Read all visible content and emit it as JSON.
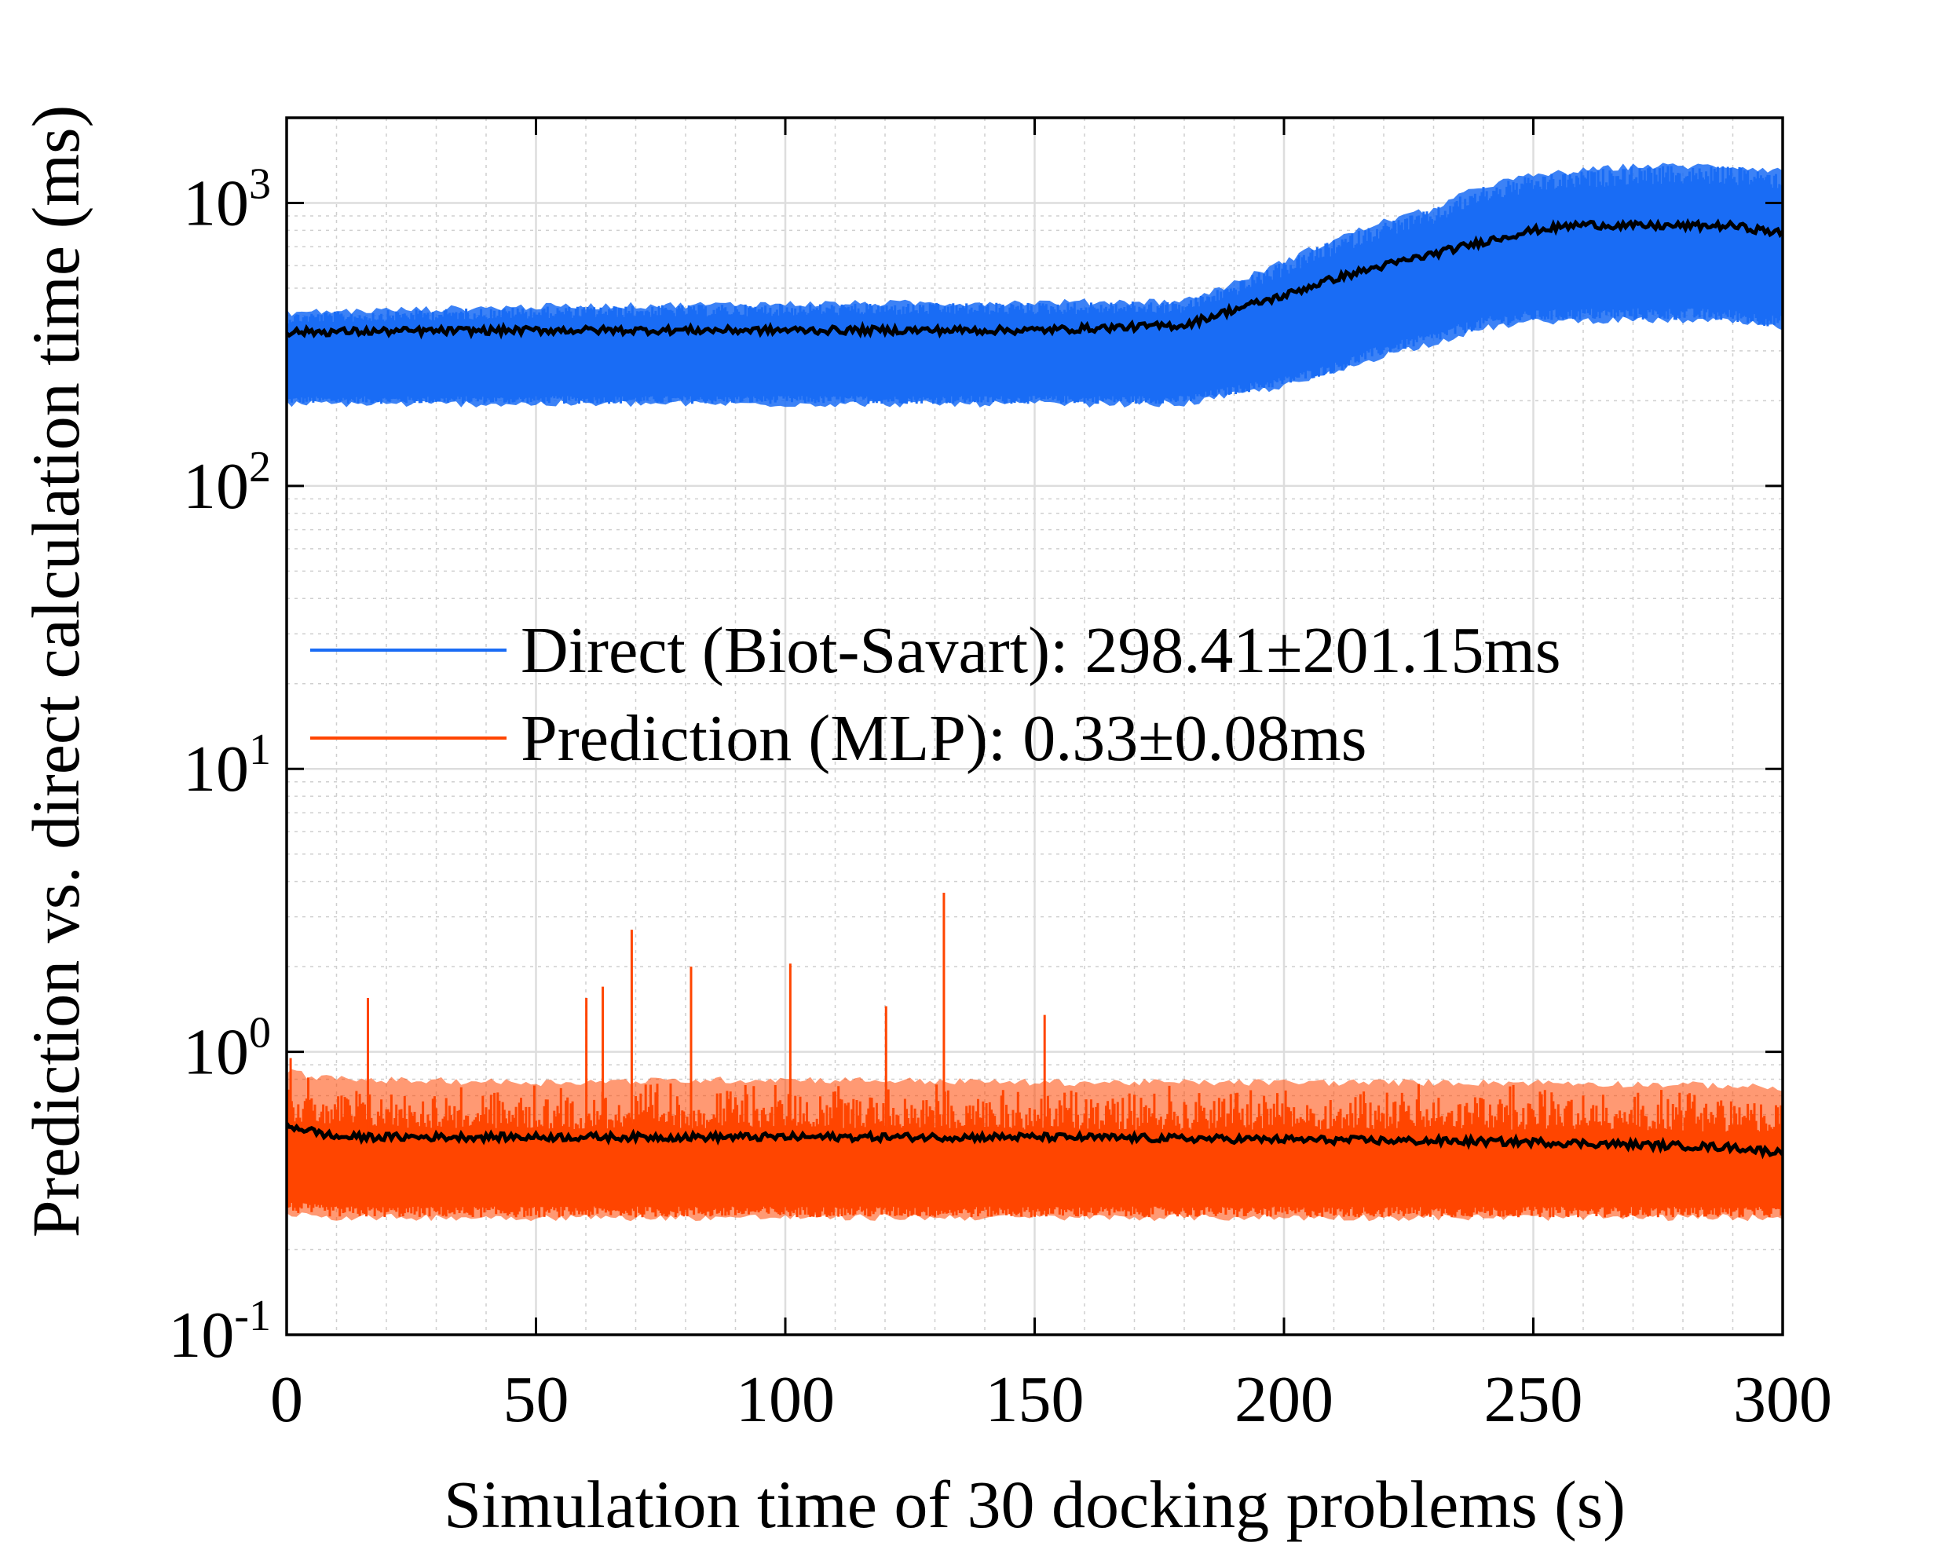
{
  "chart_data": {
    "type": "line",
    "title": "",
    "xlabel": "Simulation time of 30 docking problems (s)",
    "ylabel": "Prediction vs. direct calculation time (ms)",
    "xlim": [
      0,
      300
    ],
    "ylim": [
      0.1,
      2000
    ],
    "yscale": "log",
    "grid": true,
    "minor_grid": true,
    "legend_location": "center-left",
    "x_ticks": [
      {
        "value": 0,
        "label": "0"
      },
      {
        "value": 50,
        "label": "50"
      },
      {
        "value": 100,
        "label": "100"
      },
      {
        "value": 150,
        "label": "150"
      },
      {
        "value": 200,
        "label": "200"
      },
      {
        "value": 250,
        "label": "250"
      },
      {
        "value": 300,
        "label": "300"
      }
    ],
    "y_ticks": [
      {
        "value": 0.1,
        "base": "10",
        "exp": "-1"
      },
      {
        "value": 1,
        "base": "10",
        "exp": "0"
      },
      {
        "value": 10,
        "base": "10",
        "exp": "1"
      },
      {
        "value": 100,
        "base": "10",
        "exp": "2"
      },
      {
        "value": 1000,
        "base": "10",
        "exp": "3"
      }
    ],
    "series": [
      {
        "name": "Direct (Biot-Savart): 298.41±201.15ms",
        "color": "#1a6cf5",
        "kind": "noisy-band",
        "x": [
          0,
          50,
          100,
          150,
          180,
          190,
          200,
          210,
          220,
          230,
          240,
          250,
          260,
          270,
          280,
          290,
          300
        ],
        "lower": [
          195,
          195,
          195,
          195,
          195,
          210,
          225,
          250,
          290,
          320,
          360,
          380,
          385,
          385,
          385,
          380,
          360
        ],
        "upper": [
          410,
          430,
          440,
          445,
          450,
          520,
          620,
          740,
          860,
          950,
          1150,
          1250,
          1300,
          1350,
          1350,
          1350,
          1300
        ],
        "mean": [
          350,
          355,
          355,
          355,
          370,
          420,
          470,
          540,
          600,
          660,
          730,
          800,
          840,
          830,
          830,
          830,
          780
        ]
      },
      {
        "name": "Prediction (MLP): 0.33±0.08ms",
        "color": "#ff4500",
        "kind": "noisy-band",
        "x": [
          0,
          10,
          50,
          100,
          150,
          200,
          250,
          290,
          300
        ],
        "lower": [
          0.27,
          0.26,
          0.26,
          0.26,
          0.26,
          0.26,
          0.26,
          0.26,
          0.26
        ],
        "upper": [
          0.85,
          0.8,
          0.78,
          0.8,
          0.78,
          0.78,
          0.78,
          0.76,
          0.74
        ],
        "mean": [
          0.55,
          0.5,
          0.5,
          0.5,
          0.5,
          0.49,
          0.48,
          0.46,
          0.44
        ],
        "spikes": [
          {
            "x": 0.8,
            "y": 0.95
          },
          {
            "x": 69.2,
            "y": 2.7
          },
          {
            "x": 81.1,
            "y": 2.0
          },
          {
            "x": 101.0,
            "y": 2.05
          },
          {
            "x": 131.8,
            "y": 3.65
          },
          {
            "x": 60.1,
            "y": 1.55
          },
          {
            "x": 16.3,
            "y": 1.55
          },
          {
            "x": 120.2,
            "y": 1.45
          },
          {
            "x": 152.0,
            "y": 1.35
          },
          {
            "x": 63.4,
            "y": 1.7
          }
        ]
      }
    ],
    "mean_line_color": "#000000"
  }
}
